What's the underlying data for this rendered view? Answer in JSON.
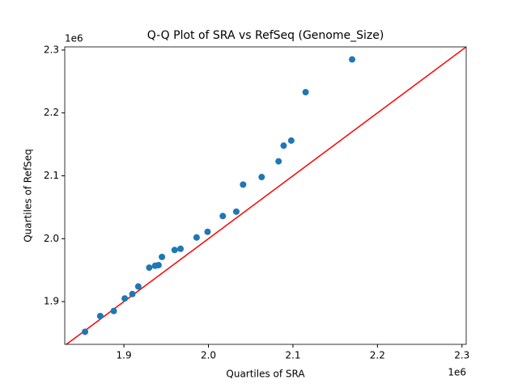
{
  "chart_data": {
    "type": "scatter",
    "title": "Q-Q Plot of SRA vs RefSeq (Genome_Size)",
    "x_label": "Quartiles of SRA",
    "y_label": "Quartiles of RefSeq",
    "x_offset_label": "1e6",
    "y_offset_label": "1e6",
    "x": [
      1854000,
      1872000,
      1888000,
      1901000,
      1910000,
      1917000,
      1930000,
      1937000,
      1941000,
      1945000,
      1960000,
      1967000,
      1986000,
      1999000,
      2017000,
      2033000,
      2041000,
      2063000,
      2083000,
      2089000,
      2098000,
      2115000,
      2170000
    ],
    "values": [
      1852000,
      1877000,
      1885000,
      1905000,
      1912000,
      1924000,
      1954000,
      1957000,
      1958000,
      1971000,
      1982000,
      1984000,
      2002000,
      2011000,
      2036000,
      2043000,
      2086000,
      2098000,
      2123000,
      2148000,
      2156000,
      2233000,
      2285000
    ],
    "color": "#1f77b4",
    "line_color": "#ff0000",
    "xlim": [
      1830000,
      2305000
    ],
    "ylim": [
      1832000,
      2305000
    ],
    "xticks": [
      {
        "value": 1900000,
        "label": "1.9"
      },
      {
        "value": 2000000,
        "label": "2.0"
      },
      {
        "value": 2100000,
        "label": "2.1"
      },
      {
        "value": 2200000,
        "label": "2.2"
      },
      {
        "value": 2300000,
        "label": "2.3"
      }
    ],
    "yticks": [
      {
        "value": 1900000,
        "label": "1.9"
      },
      {
        "value": 2000000,
        "label": "2.0"
      },
      {
        "value": 2100000,
        "label": "2.1"
      },
      {
        "value": 2200000,
        "label": "2.2"
      },
      {
        "value": 2300000,
        "label": "2.3"
      }
    ],
    "grid": false
  }
}
